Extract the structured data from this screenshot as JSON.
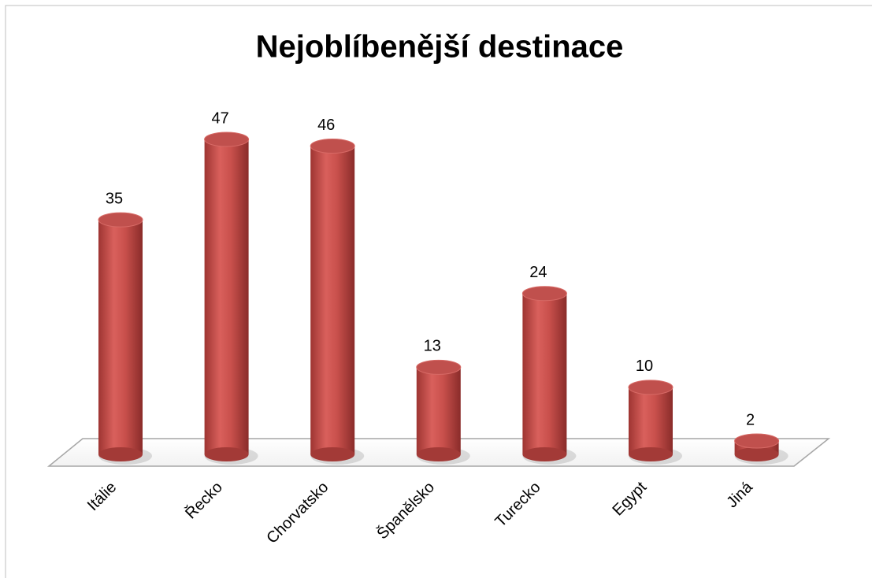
{
  "chart_data": {
    "type": "bar3d",
    "title": "Nejoblíbenější destinace",
    "categories": [
      "Itálie",
      "Řecko",
      "Chorvatsko",
      "Španělsko",
      "Turecko",
      "Egypt",
      "Jiná"
    ],
    "values": [
      35,
      47,
      46,
      13,
      24,
      10,
      2
    ],
    "color": "#c0504d"
  }
}
